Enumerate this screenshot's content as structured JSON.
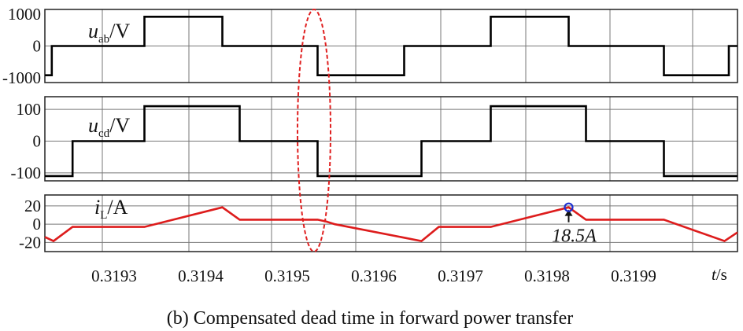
{
  "chart_data": [
    {
      "type": "line",
      "name_var": "u",
      "name_sub": "ab",
      "name_unit": "/V",
      "ylim": [
        -1000,
        1000
      ],
      "yticks": [
        1000,
        0,
        -1000
      ],
      "xlim": [
        0.31922,
        0.32002
      ],
      "grid": true,
      "color": "#000000",
      "points": [
        [
          0.31922,
          -800
        ],
        [
          0.319228,
          -800
        ],
        [
          0.319228,
          0
        ],
        [
          0.319335,
          0
        ],
        [
          0.319335,
          800
        ],
        [
          0.319425,
          800
        ],
        [
          0.319425,
          0
        ],
        [
          0.319535,
          0
        ],
        [
          0.319535,
          -800
        ],
        [
          0.319635,
          -800
        ],
        [
          0.319635,
          0
        ],
        [
          0.319735,
          0
        ],
        [
          0.319735,
          800
        ],
        [
          0.319825,
          800
        ],
        [
          0.319825,
          0
        ],
        [
          0.319935,
          0
        ],
        [
          0.319935,
          -800
        ],
        [
          0.32001,
          -800
        ],
        [
          0.32001,
          0
        ],
        [
          0.32002,
          0
        ]
      ]
    },
    {
      "type": "line",
      "name_var": "u",
      "name_sub": "cd",
      "name_unit": "/V",
      "ylim": [
        -125,
        140
      ],
      "yticks": [
        100,
        0,
        -100
      ],
      "xlim": [
        0.31922,
        0.32002
      ],
      "grid": true,
      "color": "#000000",
      "points": [
        [
          0.31922,
          -110
        ],
        [
          0.319252,
          -110
        ],
        [
          0.319252,
          0
        ],
        [
          0.319335,
          0
        ],
        [
          0.319335,
          110
        ],
        [
          0.319445,
          110
        ],
        [
          0.319445,
          0
        ],
        [
          0.319535,
          0
        ],
        [
          0.319535,
          -110
        ],
        [
          0.319655,
          -110
        ],
        [
          0.319655,
          0
        ],
        [
          0.319735,
          0
        ],
        [
          0.319735,
          110
        ],
        [
          0.319845,
          110
        ],
        [
          0.319845,
          0
        ],
        [
          0.319935,
          0
        ],
        [
          0.319935,
          -110
        ],
        [
          0.32002,
          -110
        ]
      ]
    },
    {
      "type": "line",
      "name_var": "i",
      "name_sub": "L",
      "name_unit": "/A",
      "ylim": [
        -30,
        32
      ],
      "yticks": [
        20,
        0,
        -20
      ],
      "xlim": [
        0.31922,
        0.32002
      ],
      "xticks": [
        "0.3193",
        "0.3194",
        "0.3195",
        "0.3196",
        "0.3197",
        "0.3198",
        "0.3199"
      ],
      "xtick_values": [
        0.3193,
        0.3194,
        0.3195,
        0.3196,
        0.3197,
        0.3198,
        0.3199
      ],
      "xlabel_var": "t",
      "xlabel_unit": "/s",
      "grid": true,
      "color": "#dd1c1c",
      "points": [
        [
          0.31922,
          -14
        ],
        [
          0.31923,
          -18.5
        ],
        [
          0.319252,
          -3
        ],
        [
          0.319335,
          -3
        ],
        [
          0.319425,
          18.5
        ],
        [
          0.319445,
          5
        ],
        [
          0.319535,
          5
        ],
        [
          0.319545,
          3
        ],
        [
          0.319555,
          0
        ],
        [
          0.319655,
          -18.5
        ],
        [
          0.319675,
          -3
        ],
        [
          0.319735,
          -3
        ],
        [
          0.319825,
          18.5
        ],
        [
          0.319845,
          5
        ],
        [
          0.319935,
          5
        ],
        [
          0.320005,
          -18.5
        ],
        [
          0.32002,
          -9
        ]
      ],
      "marker": {
        "x": 0.319825,
        "y": 18.5,
        "label": "18.5A"
      }
    }
  ],
  "caption": "(b) Compensated dead time in forward power transfer"
}
